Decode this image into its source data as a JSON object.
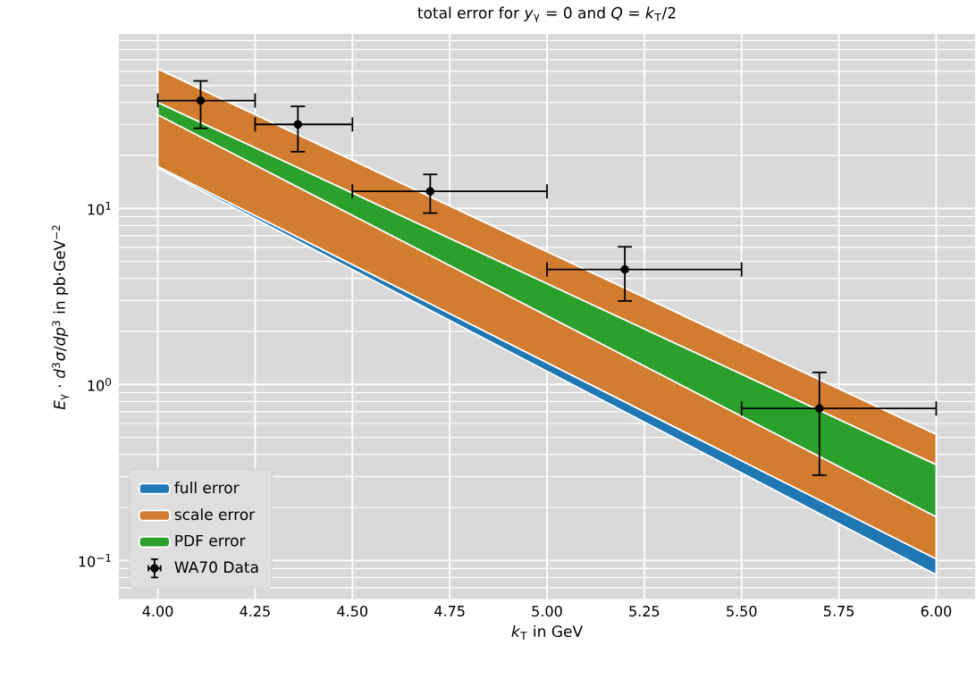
{
  "chart_data": {
    "type": "area",
    "title": "total error for *y*$_{γ}$ = 0  and  *Q* = *k*$_{T}$/2",
    "xlabel": "*k*$_{T}$ in GeV",
    "ylabel": "*E*$_{γ}$ · *d*$^{3}$*σ*/*dp*$^{3}$ in pb·GeV$^{−2}$",
    "series": [
      {
        "name": "full error",
        "color": "#1f77b4",
        "x": [
          4.0,
          6.0
        ],
        "values": [
          null,
          null
        ],
        "lower": [
          17,
          0.083
        ],
        "upper": [
          62,
          0.52
        ]
      },
      {
        "name": "scale error",
        "color": "#d27c2f",
        "x": [
          4.0,
          6.0
        ],
        "values": [
          null,
          null
        ],
        "lower": [
          17.3,
          0.102
        ],
        "upper": [
          62,
          0.52
        ]
      },
      {
        "name": "PDF error",
        "color": "#2ca02c",
        "x": [
          4.0,
          6.0
        ],
        "values": [
          null,
          null
        ],
        "lower": [
          34,
          0.177
        ],
        "upper": [
          40,
          0.35
        ]
      },
      {
        "name": "WA70 Data",
        "type": "scatter",
        "color": "#000000",
        "marker": "circle",
        "x": [
          4.11,
          4.36,
          4.7,
          5.2,
          5.7
        ],
        "values": [
          41,
          30,
          12.5,
          4.5,
          0.73
        ],
        "errors": [
          [
            28.5,
            53
          ],
          [
            21,
            38
          ],
          [
            9.4,
            15.6
          ],
          [
            2.98,
            6.05
          ],
          [
            0.305,
            1.17
          ]
        ],
        "xerrors": [
          [
            4.0,
            4.25
          ],
          [
            4.25,
            4.5
          ],
          [
            4.5,
            5.0
          ],
          [
            5.0,
            5.5
          ],
          [
            5.5,
            6.0
          ]
        ]
      }
    ],
    "xlim": [
      3.9,
      6.1
    ],
    "ylim": [
      0.06,
      98
    ],
    "log": "y",
    "xticks": [
      {
        "value": 4,
        "label": "4.00"
      },
      {
        "value": 4.25,
        "label": "4.25"
      },
      {
        "value": 4.5,
        "label": "4.50"
      },
      {
        "value": 4.75,
        "label": "4.75"
      },
      {
        "value": 5,
        "label": "5.00"
      },
      {
        "value": 5.25,
        "label": "5.25"
      },
      {
        "value": 5.5,
        "label": "5.50"
      },
      {
        "value": 5.75,
        "label": "5.75"
      },
      {
        "value": 6,
        "label": "6.00"
      }
    ],
    "yticks": [
      {
        "value": 0.1,
        "label": "10$^{−1}$"
      },
      {
        "value": 1,
        "label": "10$^{0}$"
      },
      {
        "value": 10,
        "label": "10$^{1}$"
      }
    ],
    "grid": true,
    "legend": "bottom left"
  }
}
